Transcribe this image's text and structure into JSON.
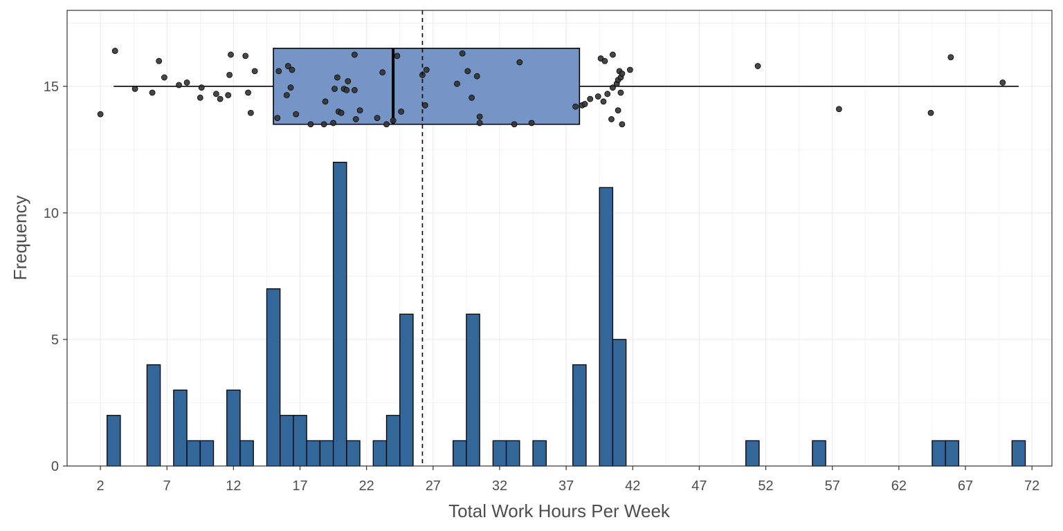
{
  "chart_data": {
    "type": "bar",
    "subtype": "histogram-with-jittered-boxplot",
    "title": "",
    "xlabel": "Total Work Hours Per Week",
    "ylabel": "Frequency",
    "xlim": [
      -0.5,
      73.5
    ],
    "ylim": [
      0,
      18
    ],
    "x_ticks": [
      2,
      7,
      12,
      17,
      22,
      27,
      32,
      37,
      42,
      47,
      52,
      57,
      62,
      67,
      72
    ],
    "y_ticks": [
      0,
      5,
      10,
      15
    ],
    "grid": "on",
    "legend": "none",
    "bin_width": 1,
    "histogram": {
      "x": [
        3,
        6,
        8,
        9,
        10,
        12,
        13,
        15,
        16,
        17,
        18,
        19,
        20,
        21,
        23,
        24,
        25,
        29,
        30,
        32,
        33,
        35,
        38,
        40,
        41,
        51,
        56,
        65,
        66,
        71
      ],
      "counts": [
        2,
        4,
        3,
        1,
        1,
        3,
        1,
        7,
        2,
        2,
        1,
        1,
        12,
        1,
        1,
        2,
        6,
        1,
        6,
        1,
        1,
        1,
        4,
        11,
        5,
        1,
        1,
        1,
        1,
        1
      ]
    },
    "mean_line": {
      "x": 26.2,
      "style": "dashed"
    },
    "boxplot": {
      "y_center": 15,
      "whisker_low": 3,
      "q1": 15,
      "median": 24,
      "q3": 38,
      "whisker_high": 71
    },
    "jitter_points": [
      [
        2.0,
        13.9
      ],
      [
        3.1,
        16.4
      ],
      [
        4.6,
        14.9
      ],
      [
        5.9,
        14.75
      ],
      [
        6.4,
        16.0
      ],
      [
        6.8,
        15.35
      ],
      [
        7.9,
        15.05
      ],
      [
        8.5,
        15.15
      ],
      [
        9.5,
        14.55
      ],
      [
        9.6,
        14.95
      ],
      [
        10.7,
        14.7
      ],
      [
        11.0,
        14.5
      ],
      [
        11.6,
        14.65
      ],
      [
        11.8,
        16.25
      ],
      [
        11.7,
        15.45
      ],
      [
        12.9,
        16.2
      ],
      [
        13.1,
        14.75
      ],
      [
        13.3,
        13.95
      ],
      [
        13.6,
        15.6
      ],
      [
        15.3,
        13.75
      ],
      [
        15.4,
        15.6
      ],
      [
        16.0,
        14.65
      ],
      [
        16.1,
        15.8
      ],
      [
        16.3,
        14.95
      ],
      [
        16.4,
        15.65
      ],
      [
        16.7,
        13.9
      ],
      [
        17.8,
        13.5
      ],
      [
        18.8,
        13.5
      ],
      [
        18.9,
        14.4
      ],
      [
        19.5,
        13.55
      ],
      [
        19.6,
        14.9
      ],
      [
        19.8,
        15.35
      ],
      [
        19.9,
        14.0
      ],
      [
        20.1,
        13.95
      ],
      [
        20.3,
        14.9
      ],
      [
        20.5,
        14.85
      ],
      [
        20.6,
        15.2
      ],
      [
        21.1,
        14.85
      ],
      [
        21.1,
        16.25
      ],
      [
        21.2,
        13.7
      ],
      [
        21.5,
        14.05
      ],
      [
        22.8,
        13.75
      ],
      [
        23.2,
        15.55
      ],
      [
        23.5,
        13.5
      ],
      [
        24.0,
        13.65
      ],
      [
        24.3,
        16.2
      ],
      [
        24.6,
        14.0
      ],
      [
        26.2,
        15.45
      ],
      [
        26.4,
        14.25
      ],
      [
        26.5,
        15.65
      ],
      [
        28.8,
        15.1
      ],
      [
        29.2,
        16.3
      ],
      [
        29.6,
        15.6
      ],
      [
        29.9,
        14.55
      ],
      [
        30.3,
        15.4
      ],
      [
        30.5,
        13.55
      ],
      [
        30.5,
        13.8
      ],
      [
        33.1,
        13.5
      ],
      [
        33.5,
        15.95
      ],
      [
        34.4,
        13.55
      ],
      [
        37.7,
        14.2
      ],
      [
        38.2,
        14.25
      ],
      [
        38.4,
        14.3
      ],
      [
        38.8,
        14.5
      ],
      [
        39.4,
        14.6
      ],
      [
        39.6,
        16.1
      ],
      [
        39.8,
        14.4
      ],
      [
        39.9,
        16.0
      ],
      [
        40.1,
        14.7
      ],
      [
        40.4,
        13.7
      ],
      [
        40.5,
        14.95
      ],
      [
        40.5,
        16.25
      ],
      [
        40.8,
        15.1
      ],
      [
        40.9,
        14.05
      ],
      [
        40.9,
        15.25
      ],
      [
        41.0,
        15.6
      ],
      [
        41.1,
        14.75
      ],
      [
        41.1,
        15.35
      ],
      [
        41.2,
        13.5
      ],
      [
        41.2,
        15.5
      ],
      [
        41.8,
        15.65
      ],
      [
        51.4,
        15.8
      ],
      [
        57.5,
        14.1
      ],
      [
        64.4,
        13.95
      ],
      [
        65.9,
        16.15
      ],
      [
        69.8,
        15.15
      ]
    ],
    "colors": {
      "bar_fill": "#336699",
      "bar_stroke": "#000000",
      "box_fill": "#7495c5",
      "point_fill": "#333333",
      "grid": "#ebebeb",
      "text": "#4d4d4d"
    }
  }
}
